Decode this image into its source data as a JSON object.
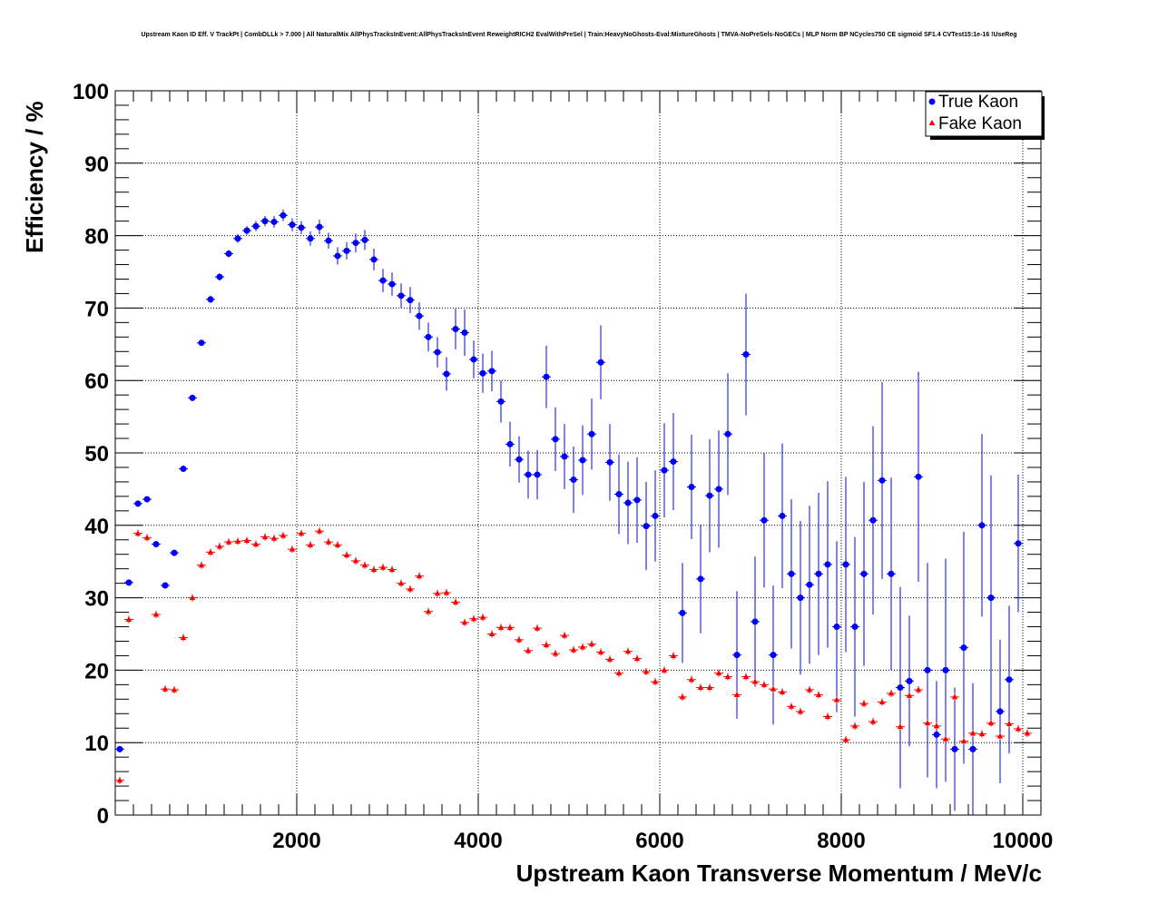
{
  "title": "Upstream Kaon ID Eff. V TrackPt | CombDLLk > 7.000 | All NaturalMix AllPhysTracksInEvent:AllPhysTracksInEvent ReweightRICH2 EvalWithPreSel | Train:HeavyNoGhosts-Eval:MixtureGhosts | TMVA-NoPreSels-NoGECs | MLP Norm BP NCycles750 CE sigmoid SF1.4 CVTest15:1e-16 !UseReg",
  "chart_data": {
    "type": "scatter",
    "xlabel": "Upstream Kaon Transverse Momentum / MeV/c",
    "ylabel": "Efficiency / %",
    "xlim": [
      0,
      10200
    ],
    "ylim": [
      0,
      100
    ],
    "xticks": [
      2000,
      4000,
      6000,
      8000,
      10000
    ],
    "yticks": [
      0,
      10,
      20,
      30,
      40,
      50,
      60,
      70,
      80,
      90,
      100
    ],
    "grid": true,
    "legend_position": "top-right",
    "bin_width": 100,
    "series": [
      {
        "name": "True Kaon",
        "color": "#0000ff",
        "marker": "circle",
        "x": [
          50,
          150,
          250,
          350,
          450,
          550,
          650,
          750,
          850,
          950,
          1050,
          1150,
          1250,
          1350,
          1450,
          1550,
          1650,
          1750,
          1850,
          1950,
          2050,
          2150,
          2250,
          2350,
          2450,
          2550,
          2650,
          2750,
          2850,
          2950,
          3050,
          3150,
          3250,
          3350,
          3450,
          3550,
          3650,
          3750,
          3850,
          3950,
          4050,
          4150,
          4250,
          4350,
          4450,
          4550,
          4650,
          4750,
          4850,
          4950,
          5050,
          5150,
          5250,
          5350,
          5450,
          5550,
          5650,
          5750,
          5850,
          5950,
          6050,
          6150,
          6250,
          6350,
          6450,
          6550,
          6650,
          6750,
          6850,
          6950,
          7050,
          7150,
          7250,
          7350,
          7450,
          7550,
          7650,
          7750,
          7850,
          7950,
          8050,
          8150,
          8250,
          8350,
          8450,
          8550,
          8650,
          8750,
          8850,
          8950,
          9050,
          9150,
          9250,
          9350,
          9450,
          9550,
          9650,
          9750,
          9850,
          9950,
          10050
        ],
        "y": [
          9.1,
          32.1,
          43.0,
          43.6,
          37.4,
          31.7,
          36.2,
          47.8,
          57.6,
          65.2,
          71.2,
          74.3,
          77.5,
          79.6,
          80.7,
          81.3,
          82.0,
          81.9,
          82.8,
          81.5,
          81.1,
          79.6,
          81.2,
          79.3,
          77.2,
          77.9,
          79.0,
          79.4,
          76.7,
          73.8,
          73.3,
          71.7,
          71.1,
          68.9,
          66.0,
          63.9,
          60.9,
          67.1,
          66.6,
          62.9,
          61.0,
          61.3,
          57.1,
          51.2,
          49.1,
          47.0,
          47.0,
          60.5,
          51.9,
          49.5,
          46.3,
          49.0,
          52.6,
          62.5,
          48.7,
          44.3,
          43.1,
          43.5,
          39.9,
          41.3,
          47.6,
          48.8,
          27.9,
          45.3,
          32.6,
          44.1,
          45.0,
          52.6,
          22.1,
          63.6,
          26.7,
          40.7,
          22.1,
          41.3,
          33.3,
          30.0,
          31.8,
          33.3,
          34.6,
          26.0,
          34.6,
          26.0,
          33.3,
          40.7,
          46.2,
          33.3,
          17.6,
          18.5,
          46.7,
          20.0,
          11.1,
          20.0,
          9.1,
          23.1,
          9.1,
          40.0,
          30.0,
          14.3,
          18.7,
          37.5,
          null
        ],
        "err": [
          0.4,
          0.4,
          0.4,
          0.4,
          0.4,
          0.4,
          0.4,
          0.4,
          0.4,
          0.4,
          0.5,
          0.5,
          0.5,
          0.6,
          0.6,
          0.7,
          0.7,
          0.8,
          0.8,
          0.9,
          0.9,
          1.0,
          1.0,
          1.1,
          1.2,
          1.2,
          1.3,
          1.4,
          1.5,
          1.6,
          1.6,
          1.7,
          1.8,
          1.9,
          2.0,
          2.1,
          2.3,
          2.8,
          3.2,
          2.6,
          2.7,
          2.8,
          2.9,
          3.1,
          3.2,
          3.3,
          3.4,
          4.3,
          4.4,
          4.5,
          4.6,
          4.8,
          4.9,
          5.1,
          5.3,
          5.5,
          5.7,
          5.9,
          6.1,
          6.3,
          6.5,
          6.7,
          6.9,
          7.2,
          7.5,
          7.8,
          8.1,
          8.4,
          8.8,
          8.4,
          9.0,
          9.3,
          9.6,
          10.0,
          10.3,
          10.6,
          10.9,
          11.2,
          11.5,
          11.8,
          12.1,
          12.4,
          12.7,
          13.0,
          13.6,
          13.3,
          13.9,
          9.0,
          14.5,
          14.8,
          7.4,
          15.4,
          8.5,
          16.0,
          9.1,
          12.6,
          16.9,
          9.9,
          10.2,
          9.5,
          null
        ]
      },
      {
        "name": "Fake Kaon",
        "color": "#ff0000",
        "marker": "triangle",
        "x": [
          50,
          150,
          250,
          350,
          450,
          550,
          650,
          750,
          850,
          950,
          1050,
          1150,
          1250,
          1350,
          1450,
          1550,
          1650,
          1750,
          1850,
          1950,
          2050,
          2150,
          2250,
          2350,
          2450,
          2550,
          2650,
          2750,
          2850,
          2950,
          3050,
          3150,
          3250,
          3350,
          3450,
          3550,
          3650,
          3750,
          3850,
          3950,
          4050,
          4150,
          4250,
          4350,
          4450,
          4550,
          4650,
          4750,
          4850,
          4950,
          5050,
          5150,
          5250,
          5350,
          5450,
          5550,
          5650,
          5750,
          5850,
          5950,
          6050,
          6150,
          6250,
          6350,
          6450,
          6550,
          6650,
          6750,
          6850,
          6950,
          7050,
          7150,
          7250,
          7350,
          7450,
          7550,
          7650,
          7750,
          7850,
          7950,
          8050,
          8150,
          8250,
          8350,
          8450,
          8550,
          8650,
          8750,
          8850,
          8950,
          9050,
          9150,
          9250,
          9350,
          9450,
          9550,
          9650,
          9750,
          9850,
          9950,
          10050
        ],
        "y": [
          4.8,
          27.0,
          38.9,
          38.3,
          27.7,
          17.4,
          17.3,
          24.5,
          30.0,
          34.5,
          36.3,
          37.1,
          37.7,
          37.8,
          37.9,
          37.4,
          38.4,
          38.2,
          38.6,
          36.7,
          38.9,
          37.3,
          39.2,
          37.7,
          37.3,
          35.9,
          35.1,
          34.5,
          33.9,
          34.2,
          33.9,
          32.0,
          31.2,
          33.0,
          28.1,
          30.6,
          30.7,
          29.4,
          26.6,
          27.1,
          27.3,
          25.0,
          25.9,
          25.9,
          24.2,
          22.7,
          25.8,
          23.5,
          22.3,
          24.8,
          22.8,
          23.2,
          23.6,
          22.5,
          21.5,
          19.6,
          22.6,
          21.6,
          19.8,
          18.4,
          20.0,
          22.0,
          16.3,
          18.7,
          17.6,
          17.6,
          19.6,
          19.1,
          16.6,
          19.1,
          18.4,
          18.0,
          17.4,
          17.0,
          15.0,
          14.3,
          17.3,
          16.6,
          13.6,
          15.9,
          10.4,
          12.3,
          15.4,
          12.9,
          15.6,
          16.8,
          12.2,
          16.5,
          17.3,
          12.7,
          12.3,
          10.5,
          16.3,
          10.2,
          11.3,
          11.2,
          12.7,
          10.9,
          12.6,
          11.9,
          11.3
        ]
      }
    ]
  }
}
